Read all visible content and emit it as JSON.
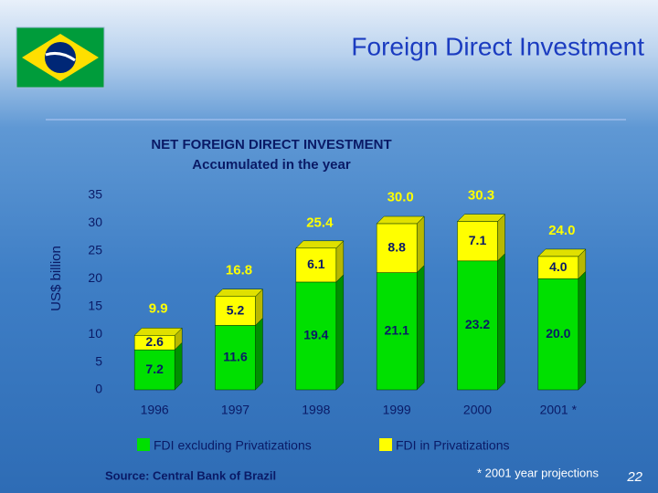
{
  "header": {
    "title": "Foreign Direct Investment"
  },
  "chart_data": {
    "type": "stacked-bar",
    "title": "NET FOREIGN DIRECT INVESTMENT",
    "subtitle": "Accumulated in the year",
    "y_label": "US$ billion",
    "categories": [
      "1996",
      "1997",
      "1998",
      "1999",
      "2000",
      "2001 *"
    ],
    "series": [
      {
        "name": "FDI excluding Privatizations",
        "color": "#00e000",
        "values": [
          7.2,
          11.6,
          19.4,
          21.1,
          23.2,
          20.0
        ],
        "value_labels": [
          "7.2",
          "11.6",
          "19.4",
          "21.1",
          "23.2",
          "20.0"
        ]
      },
      {
        "name": "FDI in Privatizations",
        "color": "#ffff00",
        "values": [
          2.6,
          5.2,
          6.1,
          8.8,
          7.1,
          4.0
        ],
        "value_labels": [
          "2.6",
          "5.2",
          "6.1",
          "8.8",
          "7.1",
          "4.0"
        ]
      }
    ],
    "totals": {
      "values": [
        9.9,
        16.8,
        25.4,
        30.0,
        30.3,
        24.0
      ],
      "value_labels": [
        "9.9",
        "16.8",
        "25.4",
        "30.0",
        "30.3",
        "24.0"
      ]
    },
    "ylim": [
      0,
      35
    ],
    "yticks": [
      0,
      5,
      10,
      15,
      20,
      25,
      30,
      35
    ],
    "grid": false
  },
  "footer": {
    "source": "Source: Central Bank of Brazil",
    "note": "* 2001 year projections",
    "page_number": "22"
  }
}
